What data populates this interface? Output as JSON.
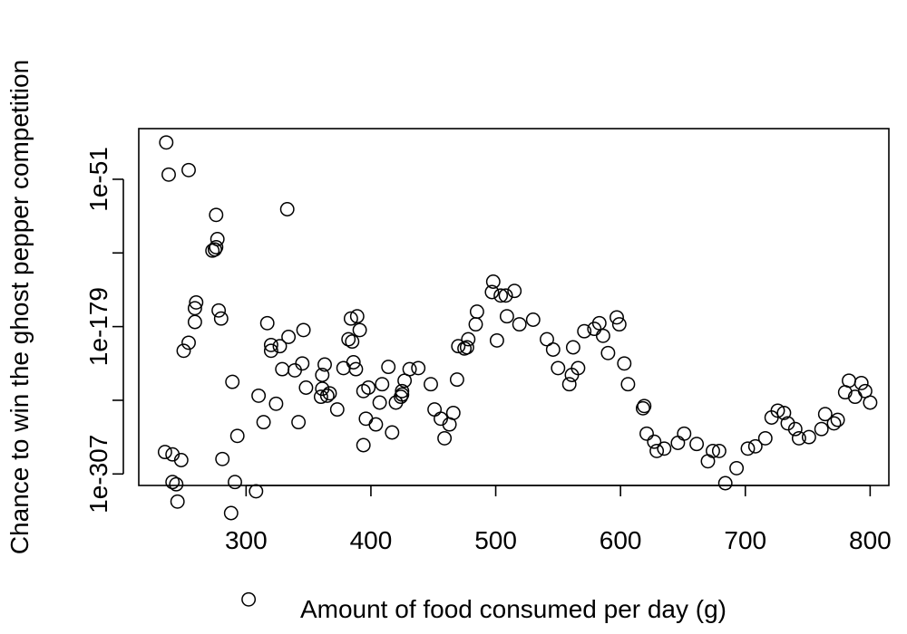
{
  "chart_data": {
    "type": "scatter",
    "title": "",
    "xlabel": "Amount of food consumed per day (g)",
    "ylabel": "Chance to win the ghost pepper competition",
    "y_scale": "log10",
    "xlim": [
      214,
      815
    ],
    "ylim_log10": [
      -317,
      -7
    ],
    "x_ticks": [
      300,
      400,
      500,
      600,
      700,
      800
    ],
    "x_tick_labels": [
      "300",
      "400",
      "500",
      "600",
      "700",
      "800"
    ],
    "y_ticks_log10": [
      -51,
      -115,
      -179,
      -243,
      -307
    ],
    "y_tick_labels": [
      "1e-51",
      "",
      "1e-179",
      "",
      "1e-307"
    ],
    "grid": false,
    "marker": "open-circle",
    "points": [
      [
        236,
        -19
      ],
      [
        238,
        -47
      ],
      [
        254,
        -43
      ],
      [
        235,
        -288
      ],
      [
        241,
        -290
      ],
      [
        248,
        -295
      ],
      [
        241,
        -314
      ],
      [
        244,
        -316
      ],
      [
        245,
        -331
      ],
      [
        250,
        -200
      ],
      [
        254,
        -193
      ],
      [
        259,
        -175
      ],
      [
        259,
        -163
      ],
      [
        260,
        -158
      ],
      [
        276,
        -82
      ],
      [
        273,
        -113
      ],
      [
        277,
        -103
      ],
      [
        276,
        -110
      ],
      [
        275,
        -112
      ],
      [
        278,
        -165
      ],
      [
        280,
        -172
      ],
      [
        281,
        -294
      ],
      [
        288,
        -341
      ],
      [
        289,
        -227
      ],
      [
        291,
        -314
      ],
      [
        293,
        -274
      ],
      [
        302,
        -416
      ],
      [
        308,
        -322
      ],
      [
        310,
        -239
      ],
      [
        314,
        -262
      ],
      [
        317,
        -176
      ],
      [
        320,
        -195
      ],
      [
        320,
        -200
      ],
      [
        324,
        -246
      ],
      [
        327,
        -196
      ],
      [
        329,
        -216
      ],
      [
        333,
        -77
      ],
      [
        334,
        -188
      ],
      [
        339,
        -217
      ],
      [
        342,
        -262
      ],
      [
        345,
        -211
      ],
      [
        346,
        -182
      ],
      [
        348,
        -232
      ],
      [
        363,
        -212
      ],
      [
        361,
        -221
      ],
      [
        361,
        -233
      ],
      [
        360,
        -240
      ],
      [
        365,
        -239
      ],
      [
        367,
        -237
      ],
      [
        373,
        -251
      ],
      [
        378,
        -215
      ],
      [
        382,
        -190
      ],
      [
        384,
        -172
      ],
      [
        385,
        -192
      ],
      [
        391,
        -182
      ],
      [
        389,
        -170
      ],
      [
        386,
        -210
      ],
      [
        388,
        -216
      ],
      [
        398,
        -232
      ],
      [
        394,
        -235
      ],
      [
        396,
        -259
      ],
      [
        394,
        -282
      ],
      [
        404,
        -264
      ],
      [
        407,
        -245
      ],
      [
        409,
        -229
      ],
      [
        414,
        -214
      ],
      [
        417,
        -271
      ],
      [
        420,
        -245
      ],
      [
        424,
        -240
      ],
      [
        425,
        -238
      ],
      [
        425,
        -235
      ],
      [
        427,
        -226
      ],
      [
        431,
        -216
      ],
      [
        438,
        -215
      ],
      [
        448,
        -229
      ],
      [
        451,
        -251
      ],
      [
        456,
        -259
      ],
      [
        459,
        -276
      ],
      [
        463,
        -264
      ],
      [
        466,
        -254
      ],
      [
        469,
        -225
      ],
      [
        470,
        -196
      ],
      [
        475,
        -198
      ],
      [
        477,
        -197
      ],
      [
        478,
        -190
      ],
      [
        484,
        -177
      ],
      [
        485,
        -166
      ],
      [
        497,
        -149
      ],
      [
        498,
        -140
      ],
      [
        504,
        -152
      ],
      [
        501,
        -191
      ],
      [
        508,
        -152
      ],
      [
        509,
        -170
      ],
      [
        515,
        -148
      ],
      [
        519,
        -177
      ],
      [
        530,
        -173
      ],
      [
        541,
        -190
      ],
      [
        546,
        -199
      ],
      [
        550,
        -215
      ],
      [
        559,
        -229
      ],
      [
        561,
        -221
      ],
      [
        566,
        -215
      ],
      [
        562,
        -197
      ],
      [
        571,
        -183
      ],
      [
        579,
        -181
      ],
      [
        583,
        -176
      ],
      [
        586,
        -187
      ],
      [
        590,
        -202
      ],
      [
        597,
        -171
      ],
      [
        599,
        -177
      ],
      [
        603,
        -211
      ],
      [
        606,
        -229
      ],
      [
        618,
        -250
      ],
      [
        619,
        -248
      ],
      [
        621,
        -272
      ],
      [
        627,
        -279
      ],
      [
        629,
        -287
      ],
      [
        635,
        -285
      ],
      [
        646,
        -280
      ],
      [
        651,
        -272
      ],
      [
        661,
        -281
      ],
      [
        670,
        -296
      ],
      [
        674,
        -287
      ],
      [
        679,
        -287
      ],
      [
        684,
        -315
      ],
      [
        693,
        -302
      ],
      [
        702,
        -285
      ],
      [
        708,
        -283
      ],
      [
        716,
        -276
      ],
      [
        721,
        -258
      ],
      [
        726,
        -252
      ],
      [
        731,
        -254
      ],
      [
        734,
        -263
      ],
      [
        740,
        -268
      ],
      [
        743,
        -276
      ],
      [
        751,
        -275
      ],
      [
        761,
        -268
      ],
      [
        764,
        -255
      ],
      [
        771,
        -263
      ],
      [
        774,
        -260
      ],
      [
        780,
        -236
      ],
      [
        783,
        -226
      ],
      [
        788,
        -240
      ],
      [
        793,
        -228
      ],
      [
        796,
        -235
      ],
      [
        800,
        -245
      ]
    ]
  }
}
